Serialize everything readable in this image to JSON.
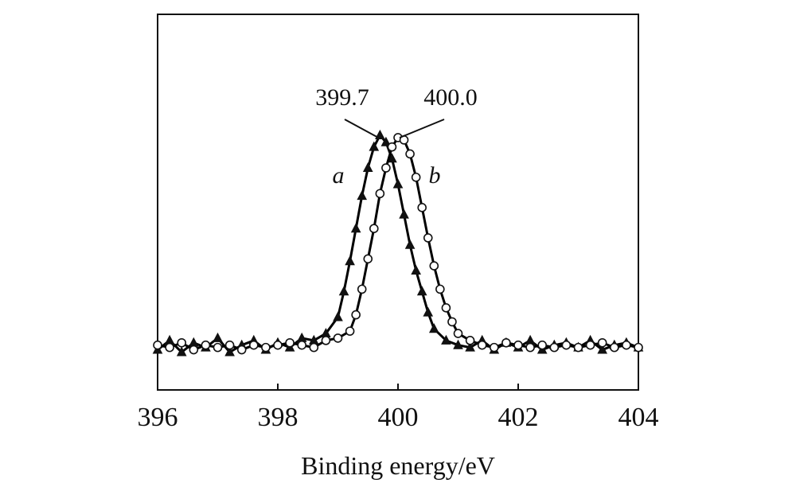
{
  "chart_data": {
    "type": "line",
    "title": "",
    "xlabel": "Binding energy/eV",
    "ylabel": "",
    "xlim": [
      396,
      404
    ],
    "ylim": [
      0,
      1.0
    ],
    "xticks": [
      "396",
      "398",
      "400",
      "402",
      "404"
    ],
    "grid": false,
    "legend": "none",
    "series": [
      {
        "name": "a",
        "marker": "triangle",
        "color": "#000000",
        "x": [
          396.0,
          396.2,
          396.4,
          396.6,
          396.8,
          397.0,
          397.2,
          397.4,
          397.6,
          397.8,
          398.0,
          398.2,
          398.4,
          398.6,
          398.8,
          399.0,
          399.1,
          399.2,
          399.3,
          399.4,
          399.5,
          399.6,
          399.7,
          399.8,
          399.9,
          400.0,
          400.1,
          400.2,
          400.3,
          400.4,
          400.5,
          400.6,
          400.8,
          401.0,
          401.2,
          401.4,
          401.6,
          401.8,
          402.0,
          402.2,
          402.4,
          402.6,
          402.8,
          403.0,
          403.2,
          403.4,
          403.6,
          403.8,
          404.0
        ],
        "values": [
          0.08,
          0.12,
          0.07,
          0.11,
          0.09,
          0.13,
          0.07,
          0.1,
          0.12,
          0.08,
          0.11,
          0.09,
          0.13,
          0.12,
          0.15,
          0.22,
          0.33,
          0.46,
          0.6,
          0.74,
          0.86,
          0.95,
          1.0,
          0.97,
          0.9,
          0.79,
          0.66,
          0.53,
          0.42,
          0.33,
          0.24,
          0.17,
          0.12,
          0.1,
          0.09,
          0.12,
          0.08,
          0.11,
          0.09,
          0.12,
          0.08,
          0.1,
          0.11,
          0.09,
          0.12,
          0.08,
          0.1,
          0.11,
          0.09
        ]
      },
      {
        "name": "b",
        "marker": "circle",
        "color": "#000000",
        "x": [
          396.0,
          396.2,
          396.4,
          396.6,
          396.8,
          397.0,
          397.2,
          397.4,
          397.6,
          397.8,
          398.0,
          398.2,
          398.4,
          398.6,
          398.8,
          399.0,
          399.2,
          399.3,
          399.4,
          399.5,
          399.6,
          399.7,
          399.8,
          399.9,
          400.0,
          400.1,
          400.2,
          400.3,
          400.4,
          400.5,
          400.6,
          400.7,
          400.8,
          400.9,
          401.0,
          401.2,
          401.4,
          401.6,
          401.8,
          402.0,
          402.2,
          402.4,
          402.6,
          402.8,
          403.0,
          403.2,
          403.4,
          403.6,
          403.8,
          404.0
        ],
        "values": [
          0.1,
          0.09,
          0.11,
          0.08,
          0.1,
          0.09,
          0.1,
          0.08,
          0.1,
          0.09,
          0.1,
          0.11,
          0.1,
          0.09,
          0.12,
          0.13,
          0.16,
          0.23,
          0.34,
          0.47,
          0.6,
          0.75,
          0.86,
          0.95,
          0.99,
          0.98,
          0.92,
          0.82,
          0.69,
          0.56,
          0.44,
          0.34,
          0.26,
          0.2,
          0.15,
          0.12,
          0.1,
          0.09,
          0.11,
          0.1,
          0.09,
          0.1,
          0.09,
          0.1,
          0.09,
          0.1,
          0.11,
          0.09,
          0.1,
          0.09
        ]
      }
    ],
    "annotations": [
      {
        "text": "399.7",
        "x": 399.7
      },
      {
        "text": "400.0",
        "x": 400.0
      }
    ]
  }
}
